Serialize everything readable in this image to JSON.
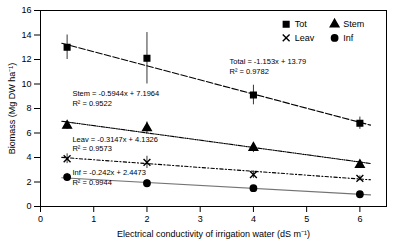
{
  "chart_data": {
    "type": "scatter",
    "xlabel": "Electrical conductivity of irrigation water (dS m⁻¹)",
    "ylabel": "Biomass (Mg DW ha⁻¹)",
    "xlim": [
      0,
      6.5
    ],
    "ylim": [
      0,
      16
    ],
    "xticks": [
      0,
      1,
      2,
      3,
      4,
      5,
      6
    ],
    "yticks": [
      0,
      2,
      4,
      6,
      8,
      10,
      12,
      14,
      16
    ],
    "grid": false,
    "legend": "upper right",
    "x": [
      0.5,
      2,
      4,
      6
    ],
    "series": [
      {
        "name": "Tot",
        "marker": "square",
        "line_style": "dashed",
        "values": [
          13.0,
          12.1,
          9.1,
          6.8
        ],
        "errors": [
          1.0,
          2.1,
          0.8,
          0.5
        ],
        "trend_x": [
          0.4,
          6.2
        ],
        "trend_values": [
          13.3288,
          6.6414
        ],
        "annotations": [
          "Total = -1.153x + 13.79",
          "R² = 0.9782"
        ]
      },
      {
        "name": "Stem",
        "marker": "triangle",
        "line_style": "dashdotdot",
        "values": [
          6.6,
          6.4,
          4.8,
          3.4
        ],
        "errors": [
          0.3,
          0.5,
          0.4,
          0.3
        ],
        "trend_x": [
          0.4,
          6.2
        ],
        "trend_values": [
          6.95864,
          3.51112
        ],
        "annotations": [
          "Stem = -0.5944x + 7.1964",
          "R² = 0.9522"
        ]
      },
      {
        "name": "Leav",
        "marker": "x",
        "line_style": "dashdot",
        "values": [
          3.9,
          3.6,
          2.6,
          2.3
        ],
        "errors": [
          0.4,
          0.5,
          0.3,
          0.2
        ],
        "trend_x": [
          0.4,
          6.2
        ],
        "trend_values": [
          4.00672,
          2.18146
        ],
        "annotations": [
          "Leav = -0.3147x + 4.1326",
          "R² = 0.9573"
        ]
      },
      {
        "name": "Inf",
        "marker": "circle",
        "line_style": "solid",
        "values": [
          2.4,
          1.9,
          1.5,
          1.0
        ],
        "errors": [
          0.3,
          0.3,
          0.2,
          0.15
        ],
        "trend_x": [
          0.4,
          6.2
        ],
        "trend_values": [
          2.3505,
          0.9469
        ],
        "annotations": [
          "Inf = -0.242x + 2.4473",
          "R² = 0.9944"
        ]
      }
    ]
  }
}
